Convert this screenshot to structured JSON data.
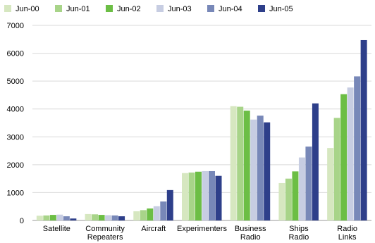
{
  "chart_data": {
    "type": "bar",
    "categories": [
      [
        "Satellite"
      ],
      [
        "Community",
        "Repeaters"
      ],
      [
        "Aircraft"
      ],
      [
        "Experimenters"
      ],
      [
        "Business",
        "Radio"
      ],
      [
        "Ships",
        "Radio"
      ],
      [
        "Radio",
        "Links"
      ]
    ],
    "series": [
      {
        "name": "Jun-00",
        "color": "#d6e7c0",
        "values": [
          170,
          230,
          330,
          1700,
          4100,
          1340,
          2600
        ]
      },
      {
        "name": "Jun-01",
        "color": "#a8d489",
        "values": [
          180,
          220,
          370,
          1720,
          4080,
          1500,
          3680
        ]
      },
      {
        "name": "Jun-02",
        "color": "#6cbe45",
        "values": [
          200,
          200,
          430,
          1750,
          3940,
          1760,
          4530
        ]
      },
      {
        "name": "Jun-03",
        "color": "#c7cde2",
        "values": [
          210,
          190,
          510,
          1770,
          3620,
          2260,
          4770
        ]
      },
      {
        "name": "Jun-04",
        "color": "#7888b8",
        "values": [
          150,
          180,
          680,
          1770,
          3760,
          2650,
          5170
        ]
      },
      {
        "name": "Jun-05",
        "color": "#2e3f8a",
        "values": [
          70,
          150,
          1090,
          1600,
          3520,
          4200,
          6470
        ]
      }
    ],
    "yticks": [
      "0",
      "1000",
      "2000",
      "3000",
      "4000",
      "5000",
      "6000",
      "7000"
    ],
    "ylim": [
      0,
      7000
    ],
    "grid": true,
    "legend": "top-left"
  }
}
